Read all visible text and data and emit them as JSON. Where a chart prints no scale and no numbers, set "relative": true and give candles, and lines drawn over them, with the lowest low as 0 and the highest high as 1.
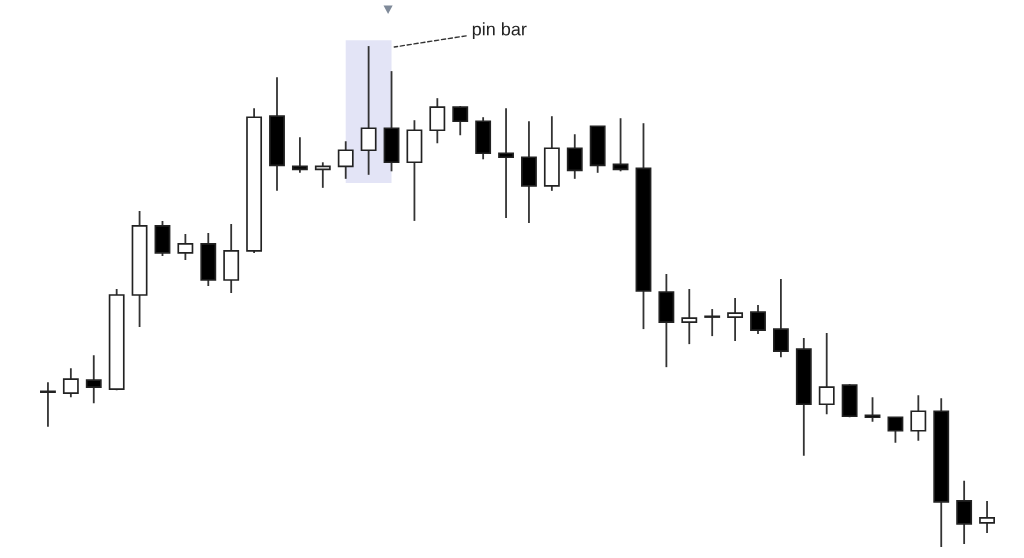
{
  "chart_data": {
    "type": "candlestick",
    "relative": true,
    "categories": [
      null,
      null,
      null,
      null,
      null,
      null,
      null,
      null,
      null,
      null,
      null,
      null,
      null,
      null,
      null,
      null,
      null,
      null,
      null,
      null,
      null,
      null,
      null,
      null,
      null,
      null,
      null,
      null,
      null,
      null,
      null,
      null,
      null,
      null,
      null,
      null,
      null,
      null,
      null,
      null,
      null,
      null
    ],
    "ohlc": [
      [
        0.309,
        0.329,
        0.24,
        0.309
      ],
      [
        0.307,
        0.357,
        0.299,
        0.335
      ],
      [
        0.333,
        0.383,
        0.287,
        0.319
      ],
      [
        0.315,
        0.515,
        0.313,
        0.503
      ],
      [
        0.503,
        0.671,
        0.439,
        0.641
      ],
      [
        0.641,
        0.651,
        0.581,
        0.587
      ],
      [
        0.587,
        0.625,
        0.573,
        0.605
      ],
      [
        0.605,
        0.627,
        0.521,
        0.533
      ],
      [
        0.533,
        0.645,
        0.507,
        0.591
      ],
      [
        0.591,
        0.876,
        0.587,
        0.858
      ],
      [
        0.86,
        0.938,
        0.711,
        0.762
      ],
      [
        0.76,
        0.818,
        0.747,
        0.754
      ],
      [
        0.754,
        0.768,
        0.717,
        0.76
      ],
      [
        0.76,
        0.81,
        0.735,
        0.792
      ],
      [
        0.792,
        1.0,
        0.743,
        0.836
      ],
      [
        0.836,
        0.95,
        0.75,
        0.768
      ],
      [
        0.768,
        0.852,
        0.651,
        0.832
      ],
      [
        0.832,
        0.896,
        0.806,
        0.878
      ],
      [
        0.878,
        0.88,
        0.822,
        0.85
      ],
      [
        0.85,
        0.858,
        0.774,
        0.786
      ],
      [
        0.786,
        0.876,
        0.657,
        0.778
      ],
      [
        0.778,
        0.85,
        0.647,
        0.721
      ],
      [
        0.721,
        0.86,
        0.711,
        0.796
      ],
      [
        0.796,
        0.824,
        0.735,
        0.752
      ],
      [
        0.84,
        0.84,
        0.747,
        0.762
      ],
      [
        0.764,
        0.856,
        0.75,
        0.754
      ],
      [
        0.756,
        0.846,
        0.435,
        0.511
      ],
      [
        0.509,
        0.545,
        0.359,
        0.449
      ],
      [
        0.449,
        0.515,
        0.405,
        0.457
      ],
      [
        0.459,
        0.475,
        0.421,
        0.459
      ],
      [
        0.459,
        0.497,
        0.411,
        0.467
      ],
      [
        0.469,
        0.483,
        0.425,
        0.433
      ],
      [
        0.435,
        0.535,
        0.379,
        0.391
      ],
      [
        0.395,
        0.417,
        0.182,
        0.285
      ],
      [
        0.285,
        0.427,
        0.265,
        0.319
      ],
      [
        0.323,
        0.325,
        0.259,
        0.261
      ],
      [
        0.263,
        0.299,
        0.25,
        0.259
      ],
      [
        0.259,
        0.259,
        0.208,
        0.232
      ],
      [
        0.232,
        0.303,
        0.212,
        0.271
      ],
      [
        0.271,
        0.297,
        0.0,
        0.09
      ],
      [
        0.092,
        0.132,
        0.006,
        0.046
      ],
      [
        0.048,
        0.092,
        0.028,
        0.058
      ]
    ],
    "annotations": [
      "pin bar"
    ]
  }
}
